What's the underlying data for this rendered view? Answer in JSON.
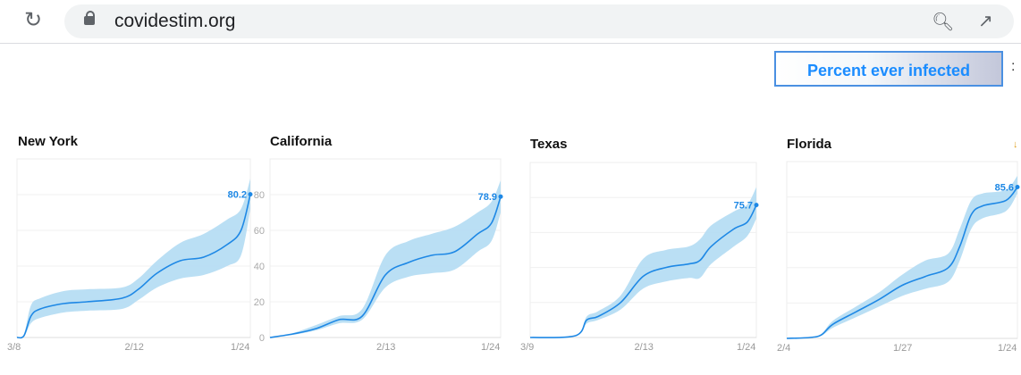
{
  "browser": {
    "url": "covidestim.org",
    "icons": [
      "reload-icon",
      "lock-icon",
      "zoom-out-icon",
      "share-icon"
    ]
  },
  "metric_button": {
    "label": "Percent ever infected",
    "overflow_text": ":"
  },
  "colors": {
    "line": "#1e88e5",
    "band": "#b3dcf3",
    "label": "#1e88e5",
    "grid": "#f0f0f0"
  },
  "chart_data": [
    {
      "type": "area",
      "title": "New York",
      "ylim": [
        0,
        100
      ],
      "yticks": [
        0,
        20,
        40,
        60,
        80
      ],
      "show_y_labels": false,
      "xlabels": [
        "3/8",
        "2/12",
        "1/24"
      ],
      "last_label": "80.2",
      "t": [
        0,
        0.03,
        0.06,
        0.1,
        0.2,
        0.3,
        0.45,
        0.52,
        0.6,
        0.7,
        0.8,
        0.9,
        0.96,
        1
      ],
      "mean": [
        0,
        1,
        12,
        16,
        19,
        20,
        22,
        27,
        36,
        43,
        45,
        52,
        60,
        80.2
      ],
      "lo": [
        0,
        0.5,
        8,
        11,
        14,
        15,
        16,
        21,
        28,
        33,
        35,
        40,
        46,
        72
      ],
      "hi": [
        0,
        2,
        18,
        22,
        26,
        27,
        28,
        33,
        43,
        53,
        58,
        66,
        72,
        89
      ]
    },
    {
      "type": "area",
      "title": "California",
      "ylim": [
        0,
        100
      ],
      "yticks": [
        0,
        20,
        40,
        60,
        80
      ],
      "show_y_labels": true,
      "xlabels": [
        "",
        "2/13",
        "1/24"
      ],
      "last_label": "78.9",
      "t": [
        0,
        0.1,
        0.2,
        0.3,
        0.4,
        0.5,
        0.6,
        0.7,
        0.8,
        0.9,
        0.96,
        1
      ],
      "mean": [
        0,
        2,
        5,
        10,
        12,
        35,
        42,
        46,
        48,
        58,
        64,
        78.9
      ],
      "lo": [
        0,
        1.5,
        4,
        8,
        10,
        28,
        34,
        36,
        38,
        48,
        54,
        70
      ],
      "hi": [
        0,
        2.5,
        7,
        12,
        16,
        46,
        54,
        58,
        62,
        70,
        76,
        88
      ]
    },
    {
      "type": "area",
      "title": "Texas",
      "ylim": [
        0,
        100
      ],
      "yticks": [
        0,
        20,
        40,
        60,
        80
      ],
      "show_y_labels": false,
      "xlabels": [
        "3/9",
        "2/13",
        "1/24"
      ],
      "last_label": "75.7",
      "t": [
        0,
        0.2,
        0.25,
        0.3,
        0.4,
        0.5,
        0.6,
        0.7,
        0.75,
        0.8,
        0.9,
        0.96,
        1
      ],
      "mean": [
        0,
        1,
        10,
        12,
        20,
        35,
        40,
        42,
        44,
        52,
        62,
        66,
        75.7
      ],
      "lo": [
        0,
        1,
        8,
        10,
        16,
        28,
        32,
        34,
        34,
        42,
        52,
        58,
        68
      ],
      "hi": [
        0,
        1,
        12,
        15,
        24,
        45,
        50,
        52,
        56,
        64,
        72,
        76,
        86
      ]
    },
    {
      "type": "area",
      "title": "Florida",
      "ylim": [
        0,
        100
      ],
      "yticks": [
        0,
        20,
        40,
        60,
        80
      ],
      "show_y_labels": false,
      "xlabels": [
        "2/4",
        "1/27",
        "1/24"
      ],
      "last_label": "85.6",
      "t": [
        0,
        0.1,
        0.15,
        0.2,
        0.3,
        0.4,
        0.5,
        0.6,
        0.7,
        0.75,
        0.8,
        0.85,
        0.95,
        1
      ],
      "mean": [
        0,
        0.5,
        2,
        8,
        15,
        22,
        30,
        35,
        40,
        52,
        70,
        75,
        78,
        85.6
      ],
      "lo": [
        0,
        0.5,
        1.5,
        6,
        12,
        18,
        24,
        28,
        32,
        44,
        62,
        68,
        72,
        82
      ],
      "hi": [
        0,
        0.5,
        2.5,
        10,
        18,
        26,
        36,
        44,
        48,
        62,
        78,
        82,
        84,
        92
      ]
    }
  ]
}
